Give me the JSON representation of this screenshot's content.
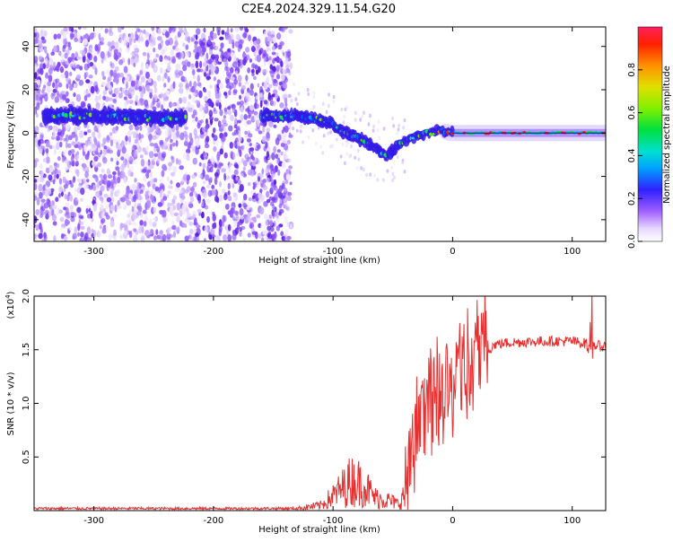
{
  "title": "C2E4.2024.329.11.54.G20",
  "chart_data": [
    {
      "type": "heatmap",
      "name": "spectrogram",
      "xlabel": "Height of straight line (km)",
      "ylabel": "Frequency (Hz)",
      "xlim": [
        -350,
        128
      ],
      "ylim": [
        -50,
        49
      ],
      "xticks": [
        -300,
        -200,
        -100,
        0,
        100
      ],
      "yticks": [
        -40,
        -20,
        0,
        20,
        40
      ],
      "colorbar": {
        "label": "Normalized spectral amplitude",
        "range": [
          0,
          1
        ],
        "ticks": [
          0.0,
          0.2,
          0.4,
          0.6,
          0.8
        ],
        "tick_labels": [
          "0.0",
          "0.2",
          "0.4",
          "0.6",
          "0.8"
        ]
      },
      "track": [
        {
          "x": -340,
          "f": 8
        },
        {
          "x": -300,
          "f": 8
        },
        {
          "x": -260,
          "f": 7
        },
        {
          "x": -220,
          "f": 7
        },
        {
          "x": -160,
          "f": 8
        },
        {
          "x": -130,
          "f": 8
        },
        {
          "x": -110,
          "f": 6
        },
        {
          "x": -100,
          "f": 4
        },
        {
          "x": -90,
          "f": 0
        },
        {
          "x": -80,
          "f": -2
        },
        {
          "x": -70,
          "f": -5
        },
        {
          "x": -55,
          "f": -11
        },
        {
          "x": -45,
          "f": -5
        },
        {
          "x": -30,
          "f": -1
        },
        {
          "x": -10,
          "f": 1
        },
        {
          "x": 0,
          "f": 0
        },
        {
          "x": 30,
          "f": 0
        },
        {
          "x": 80,
          "f": 0
        },
        {
          "x": 128,
          "f": 0
        }
      ]
    },
    {
      "type": "line",
      "name": "snr",
      "xlabel": "Height of straight line (km)",
      "ylabel": "SNR (10 * v/v)",
      "y_multiplier_label": "(x10",
      "y_multiplier_exp": "4",
      "y_multiplier_close": ")",
      "xlim": [
        -350,
        128
      ],
      "ylim": [
        0.0,
        2.0
      ],
      "xticks": [
        -300,
        -200,
        -100,
        0,
        100
      ],
      "yticks": [
        0.5,
        1.0,
        1.5,
        2.0
      ],
      "ytick_labels": [
        "0.5",
        "1.0",
        "1.5",
        "2.0"
      ],
      "color": "#e83030",
      "envelope": [
        {
          "x": -350,
          "y": 0.02
        },
        {
          "x": -200,
          "y": 0.02
        },
        {
          "x": -130,
          "y": 0.02
        },
        {
          "x": -110,
          "y": 0.05
        },
        {
          "x": -95,
          "y": 0.18
        },
        {
          "x": -85,
          "y": 0.28
        },
        {
          "x": -75,
          "y": 0.25
        },
        {
          "x": -65,
          "y": 0.12
        },
        {
          "x": -55,
          "y": 0.1
        },
        {
          "x": -45,
          "y": 0.06
        },
        {
          "x": -38,
          "y": 0.2
        },
        {
          "x": -32,
          "y": 0.55
        },
        {
          "x": -25,
          "y": 0.8
        },
        {
          "x": -15,
          "y": 1.0
        },
        {
          "x": -5,
          "y": 1.05
        },
        {
          "x": 5,
          "y": 1.15
        },
        {
          "x": 15,
          "y": 1.3
        },
        {
          "x": 25,
          "y": 1.45
        },
        {
          "x": 35,
          "y": 1.55
        },
        {
          "x": 50,
          "y": 1.57
        },
        {
          "x": 80,
          "y": 1.58
        },
        {
          "x": 100,
          "y": 1.58
        },
        {
          "x": 110,
          "y": 1.56
        },
        {
          "x": 120,
          "y": 1.54
        },
        {
          "x": 128,
          "y": 1.53
        }
      ]
    }
  ]
}
